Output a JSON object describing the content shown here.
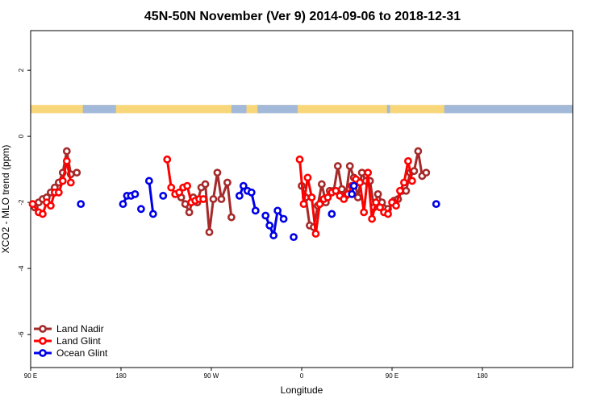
{
  "chart_data": {
    "type": "line",
    "title": "45N-50N November (Ver 9)   2014-09-06 to 2018-12-31",
    "xlabel": "Longitude",
    "ylabel": "XCO2 - MLO trend (ppm)",
    "xlim": [
      0,
      540
    ],
    "ylim": [
      -7,
      3.2
    ],
    "x_ticks": [
      {
        "value": 0,
        "label": "90 E"
      },
      {
        "value": 90,
        "label": "180"
      },
      {
        "value": 180,
        "label": "90 W"
      },
      {
        "value": 270,
        "label": "0"
      },
      {
        "value": 360,
        "label": "90 E"
      },
      {
        "value": 450,
        "label": "180"
      }
    ],
    "y_ticks": [
      {
        "value": 2,
        "label": "2"
      },
      {
        "value": 0,
        "label": "0"
      },
      {
        "value": -2,
        "label": "-2"
      },
      {
        "value": -4,
        "label": "-4"
      },
      {
        "value": -6,
        "label": "-6"
      }
    ],
    "legend_position": "bottom-left",
    "land_mask": {
      "y_top": 0.95,
      "y_bottom": 0.7,
      "land_color": "#f8d67a",
      "ocean_color": "#a3b9d9"
    },
    "series": [
      {
        "name": "Land Nadir",
        "color": "#a52a2a",
        "segments": [
          [
            [
              4,
              -2.15
            ],
            [
              8,
              -2.0
            ],
            [
              12,
              -1.9
            ],
            [
              16,
              -1.85
            ],
            [
              20,
              -1.7
            ],
            [
              24,
              -1.55
            ],
            [
              28,
              -1.4
            ],
            [
              32,
              -1.1
            ],
            [
              36,
              -0.45
            ],
            [
              40,
              -1.15
            ],
            [
              46,
              -1.1
            ]
          ],
          [
            [
              150,
              -1.85
            ],
            [
              154,
              -2.05
            ],
            [
              158,
              -2.3
            ],
            [
              162,
              -1.85
            ],
            [
              166,
              -2.0
            ],
            [
              170,
              -1.55
            ],
            [
              174,
              -1.45
            ],
            [
              178,
              -2.9
            ],
            [
              182,
              -1.9
            ],
            [
              186,
              -1.1
            ],
            [
              190,
              -1.9
            ],
            [
              196,
              -1.4
            ],
            [
              200,
              -2.45
            ]
          ],
          [
            [
              270,
              -1.5
            ],
            [
              274,
              -1.85
            ],
            [
              278,
              -2.7
            ],
            [
              282,
              -2.75
            ],
            [
              286,
              -2.1
            ],
            [
              290,
              -1.45
            ],
            [
              294,
              -2.0
            ],
            [
              298,
              -1.65
            ],
            [
              302,
              -1.65
            ],
            [
              306,
              -0.9
            ],
            [
              310,
              -1.6
            ],
            [
              314,
              -1.8
            ],
            [
              318,
              -0.9
            ],
            [
              322,
              -1.25
            ],
            [
              326,
              -1.85
            ],
            [
              330,
              -1.1
            ],
            [
              334,
              -1.35
            ],
            [
              338,
              -1.35
            ],
            [
              342,
              -2.15
            ],
            [
              346,
              -1.75
            ],
            [
              350,
              -2.0
            ],
            [
              356,
              -2.2
            ],
            [
              362,
              -1.95
            ],
            [
              366,
              -1.9
            ],
            [
              370,
              -1.65
            ],
            [
              374,
              -1.65
            ],
            [
              378,
              -1.1
            ],
            [
              382,
              -1.05
            ],
            [
              386,
              -0.45
            ],
            [
              390,
              -1.2
            ],
            [
              394,
              -1.1
            ]
          ]
        ]
      },
      {
        "name": "Land Glint",
        "color": "#ff0000",
        "segments": [
          [
            [
              2,
              -2.05
            ],
            [
              8,
              -2.3
            ],
            [
              12,
              -2.35
            ],
            [
              16,
              -2.0
            ],
            [
              20,
              -2.1
            ],
            [
              24,
              -1.7
            ],
            [
              28,
              -1.7
            ],
            [
              32,
              -1.35
            ],
            [
              36,
              -0.75
            ],
            [
              40,
              -1.4
            ]
          ],
          [
            [
              136,
              -0.7
            ],
            [
              140,
              -1.55
            ],
            [
              144,
              -1.75
            ],
            [
              148,
              -1.7
            ],
            [
              152,
              -1.55
            ],
            [
              156,
              -1.5
            ],
            [
              160,
              -2.0
            ],
            [
              164,
              -1.95
            ],
            [
              168,
              -1.9
            ],
            [
              172,
              -1.9
            ]
          ],
          [
            [
              268,
              -0.7
            ],
            [
              272,
              -2.05
            ],
            [
              276,
              -1.25
            ],
            [
              280,
              -1.85
            ],
            [
              284,
              -2.95
            ],
            [
              288,
              -2.05
            ],
            [
              292,
              -1.9
            ],
            [
              296,
              -1.85
            ],
            [
              300,
              -1.7
            ],
            [
              304,
              -1.65
            ],
            [
              308,
              -1.8
            ],
            [
              312,
              -1.9
            ],
            [
              316,
              -1.75
            ],
            [
              320,
              -1.5
            ],
            [
              324,
              -1.3
            ],
            [
              328,
              -1.4
            ],
            [
              332,
              -2.3
            ],
            [
              336,
              -1.1
            ],
            [
              340,
              -2.5
            ],
            [
              344,
              -2.0
            ],
            [
              348,
              -2.15
            ],
            [
              352,
              -2.3
            ],
            [
              356,
              -2.35
            ],
            [
              360,
              -2.0
            ],
            [
              364,
              -2.1
            ],
            [
              368,
              -1.65
            ],
            [
              372,
              -1.4
            ],
            [
              376,
              -0.75
            ],
            [
              380,
              -1.35
            ]
          ]
        ]
      },
      {
        "name": "Ocean Glint",
        "color": "#0000e6",
        "segments": [
          [
            [
              50,
              -2.05
            ]
          ],
          [
            [
              92,
              -2.05
            ],
            [
              96,
              -1.8
            ],
            [
              100,
              -1.8
            ],
            [
              104,
              -1.75
            ]
          ],
          [
            [
              110,
              -2.2
            ]
          ],
          [
            [
              118,
              -1.35
            ],
            [
              122,
              -2.35
            ]
          ],
          [
            [
              132,
              -1.8
            ]
          ],
          [
            [
              208,
              -1.8
            ],
            [
              212,
              -1.5
            ],
            [
              216,
              -1.65
            ],
            [
              220,
              -1.7
            ],
            [
              224,
              -2.25
            ]
          ],
          [
            [
              234,
              -2.4
            ],
            [
              238,
              -2.7
            ],
            [
              242,
              -3.0
            ],
            [
              246,
              -2.25
            ],
            [
              252,
              -2.5
            ]
          ],
          [
            [
              262,
              -3.05
            ]
          ],
          [
            [
              300,
              -2.35
            ]
          ],
          [
            [
              320,
              -1.75
            ],
            [
              322,
              -1.5
            ]
          ],
          [
            [
              404,
              -2.05
            ]
          ]
        ]
      }
    ]
  }
}
